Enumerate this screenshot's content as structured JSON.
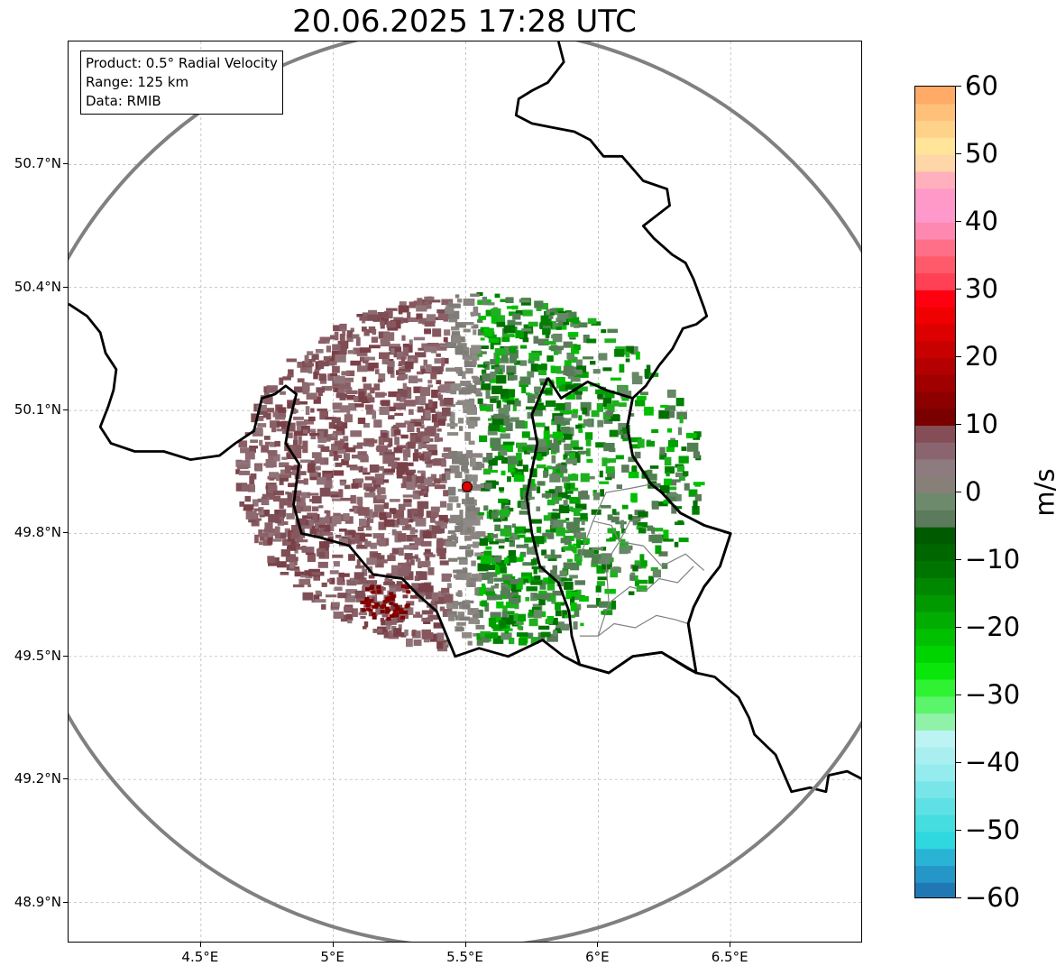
{
  "title": "20.06.2025 17:28 UTC",
  "info_box": {
    "product": "Product: 0.5° Radial Velocity",
    "range": "Range: 125 km",
    "data": "Data: RMIB"
  },
  "map": {
    "lon_range": [
      4.0,
      7.0
    ],
    "lat_range": [
      48.8,
      51.0
    ],
    "radar_site": {
      "lon": 5.505,
      "lat": 49.914
    },
    "range_ring_color": "#808080",
    "border_color": "#000000",
    "province_color": "#808080",
    "lat_ticks": [
      {
        "label": "50.7°N",
        "lat": 50.7
      },
      {
        "label": "50.4°N",
        "lat": 50.4
      },
      {
        "label": "50.1°N",
        "lat": 50.1
      },
      {
        "label": "49.8°N",
        "lat": 49.8
      },
      {
        "label": "49.5°N",
        "lat": 49.5
      },
      {
        "label": "49.2°N",
        "lat": 49.2
      },
      {
        "label": "48.9°N",
        "lat": 48.9
      }
    ],
    "lon_ticks": [
      {
        "label": "4.5°E",
        "lon": 4.5
      },
      {
        "label": "5°E",
        "lon": 5.0
      },
      {
        "label": "5.5°E",
        "lon": 5.5
      },
      {
        "label": "6°E",
        "lon": 6.0
      },
      {
        "label": "6.5°E",
        "lon": 6.5
      }
    ],
    "country_borders": [
      [
        [
          4.0,
          50.36
        ],
        [
          4.07,
          50.33
        ],
        [
          4.12,
          50.29
        ],
        [
          4.14,
          50.24
        ],
        [
          4.18,
          50.2
        ],
        [
          4.17,
          50.15
        ],
        [
          4.15,
          50.11
        ],
        [
          4.12,
          50.06
        ],
        [
          4.16,
          50.02
        ],
        [
          4.25,
          50.0
        ],
        [
          4.36,
          50.0
        ],
        [
          4.46,
          49.98
        ],
        [
          4.57,
          49.99
        ],
        [
          4.63,
          50.02
        ],
        [
          4.7,
          50.05
        ],
        [
          4.73,
          50.13
        ],
        [
          4.78,
          50.14
        ],
        [
          4.82,
          50.16
        ],
        [
          4.86,
          50.14
        ],
        [
          4.83,
          50.06
        ],
        [
          4.82,
          50.02
        ],
        [
          4.87,
          49.97
        ],
        [
          4.85,
          49.87
        ],
        [
          4.88,
          49.8
        ],
        [
          4.95,
          49.79
        ],
        [
          5.06,
          49.77
        ],
        [
          5.15,
          49.7
        ],
        [
          5.26,
          49.69
        ],
        [
          5.32,
          49.65
        ],
        [
          5.39,
          49.61
        ],
        [
          5.46,
          49.5
        ],
        [
          5.55,
          49.52
        ],
        [
          5.66,
          49.5
        ],
        [
          5.79,
          49.54
        ],
        [
          5.87,
          49.5
        ],
        [
          5.93,
          49.48
        ],
        [
          6.04,
          49.46
        ],
        [
          6.13,
          49.5
        ],
        [
          6.24,
          49.51
        ],
        [
          6.34,
          49.47
        ],
        [
          6.37,
          49.46
        ],
        [
          6.44,
          49.45
        ],
        [
          6.53,
          49.4
        ],
        [
          6.57,
          49.35
        ],
        [
          6.59,
          49.31
        ],
        [
          6.67,
          49.26
        ],
        [
          6.73,
          49.17
        ],
        [
          6.8,
          49.18
        ],
        [
          6.86,
          49.17
        ],
        [
          6.87,
          49.21
        ],
        [
          6.94,
          49.22
        ],
        [
          7.0,
          49.2
        ]
      ],
      [
        [
          5.85,
          51.0
        ],
        [
          5.87,
          50.95
        ],
        [
          5.81,
          50.9
        ],
        [
          5.75,
          50.88
        ],
        [
          5.7,
          50.86
        ],
        [
          5.69,
          50.82
        ],
        [
          5.75,
          50.8
        ],
        [
          5.83,
          50.79
        ],
        [
          5.91,
          50.78
        ],
        [
          5.97,
          50.76
        ],
        [
          6.02,
          50.72
        ],
        [
          6.09,
          50.72
        ],
        [
          6.17,
          50.66
        ],
        [
          6.26,
          50.64
        ],
        [
          6.27,
          50.6
        ],
        [
          6.17,
          50.55
        ],
        [
          6.21,
          50.52
        ],
        [
          6.28,
          50.48
        ],
        [
          6.33,
          50.46
        ],
        [
          6.36,
          50.42
        ],
        [
          6.4,
          50.35
        ],
        [
          6.41,
          50.33
        ],
        [
          6.37,
          50.31
        ],
        [
          6.32,
          50.3
        ],
        [
          6.28,
          50.25
        ],
        [
          6.23,
          50.21
        ],
        [
          6.18,
          50.16
        ],
        [
          6.13,
          50.13
        ],
        [
          6.11,
          50.06
        ],
        [
          6.13,
          49.99
        ],
        [
          6.2,
          49.92
        ],
        [
          6.24,
          49.9
        ],
        [
          6.31,
          49.85
        ],
        [
          6.4,
          49.82
        ],
        [
          6.5,
          49.8
        ],
        [
          6.46,
          49.72
        ],
        [
          6.4,
          49.67
        ],
        [
          6.36,
          49.62
        ],
        [
          6.34,
          49.58
        ],
        [
          6.37,
          49.46
        ]
      ],
      [
        [
          5.81,
          50.18
        ],
        [
          5.86,
          50.13
        ],
        [
          5.96,
          50.17
        ],
        [
          6.03,
          50.15
        ],
        [
          6.13,
          50.13
        ],
        [
          6.11,
          50.06
        ],
        [
          6.13,
          49.99
        ],
        [
          6.2,
          49.92
        ],
        [
          6.24,
          49.9
        ],
        [
          6.31,
          49.85
        ],
        [
          6.4,
          49.82
        ],
        [
          6.5,
          49.8
        ],
        [
          6.46,
          49.72
        ],
        [
          6.4,
          49.67
        ],
        [
          6.36,
          49.62
        ],
        [
          6.34,
          49.58
        ],
        [
          6.37,
          49.46
        ],
        [
          6.24,
          49.51
        ],
        [
          6.13,
          49.5
        ],
        [
          6.04,
          49.46
        ],
        [
          5.93,
          49.48
        ],
        [
          5.9,
          49.55
        ],
        [
          5.89,
          49.61
        ],
        [
          5.85,
          49.68
        ],
        [
          5.78,
          49.72
        ],
        [
          5.75,
          49.8
        ],
        [
          5.73,
          49.89
        ],
        [
          5.77,
          50.02
        ],
        [
          5.75,
          50.09
        ],
        [
          5.81,
          50.18
        ]
      ]
    ],
    "province_borders": [
      [
        [
          5.93,
          49.55
        ],
        [
          6.0,
          49.55
        ],
        [
          6.06,
          49.58
        ],
        [
          6.14,
          49.57
        ],
        [
          6.22,
          49.6
        ],
        [
          6.29,
          49.59
        ],
        [
          6.34,
          49.58
        ]
      ],
      [
        [
          6.0,
          49.55
        ],
        [
          6.04,
          49.63
        ],
        [
          6.12,
          49.67
        ],
        [
          6.18,
          49.66
        ],
        [
          6.23,
          49.69
        ],
        [
          6.3,
          49.68
        ],
        [
          6.36,
          49.72
        ]
      ],
      [
        [
          6.04,
          49.63
        ],
        [
          6.03,
          49.73
        ],
        [
          6.08,
          49.78
        ],
        [
          6.12,
          49.83
        ],
        [
          6.18,
          49.84
        ]
      ],
      [
        [
          6.08,
          49.78
        ],
        [
          6.17,
          49.77
        ],
        [
          6.24,
          49.72
        ],
        [
          6.33,
          49.75
        ],
        [
          6.4,
          49.71
        ]
      ],
      [
        [
          5.98,
          49.83
        ],
        [
          6.05,
          49.82
        ],
        [
          6.08,
          49.78
        ]
      ],
      [
        [
          5.93,
          49.74
        ],
        [
          5.98,
          49.83
        ],
        [
          6.03,
          49.9
        ],
        [
          6.12,
          49.91
        ],
        [
          6.2,
          49.92
        ]
      ]
    ]
  },
  "colorbar": {
    "label": "m/s",
    "vmin": -60,
    "vmax": 60,
    "ticks": [
      {
        "label": "60",
        "value": 60
      },
      {
        "label": "50",
        "value": 50
      },
      {
        "label": "40",
        "value": 40
      },
      {
        "label": "30",
        "value": 30
      },
      {
        "label": "20",
        "value": 20
      },
      {
        "label": "10",
        "value": 10
      },
      {
        "label": "0",
        "value": 0
      },
      {
        "label": "−10",
        "value": -10
      },
      {
        "label": "−20",
        "value": -20
      },
      {
        "label": "−30",
        "value": -30
      },
      {
        "label": "−40",
        "value": -40
      },
      {
        "label": "−50",
        "value": -50
      },
      {
        "label": "−60",
        "value": -60
      }
    ],
    "colors": [
      "#1f78b4",
      "#2596c8",
      "#29b4d6",
      "#2fd8de",
      "#46dde0",
      "#5ee0e4",
      "#78e6e8",
      "#95ecee",
      "#aaeff0",
      "#bcf3f3",
      "#8ff2a8",
      "#5af56a",
      "#2ef232",
      "#0ae60a",
      "#00d400",
      "#00c000",
      "#00ad00",
      "#009a00",
      "#008700",
      "#007400",
      "#006600",
      "#005a00",
      "#5c7b5c",
      "#6d8a6d",
      "#868078",
      "#8e7b80",
      "#8a6570",
      "#854d55",
      "#7a0000",
      "#8c0000",
      "#a00000",
      "#b40000",
      "#c80000",
      "#dc0000",
      "#f00000",
      "#ff0010",
      "#ff4055",
      "#ff5a6a",
      "#ff7088",
      "#ff88b0",
      "#ff99cc",
      "#ff99c8",
      "#ffb0bc",
      "#ffd6a8",
      "#ffe49a",
      "#ffd28a",
      "#ffc07a",
      "#ffaa66"
    ]
  }
}
